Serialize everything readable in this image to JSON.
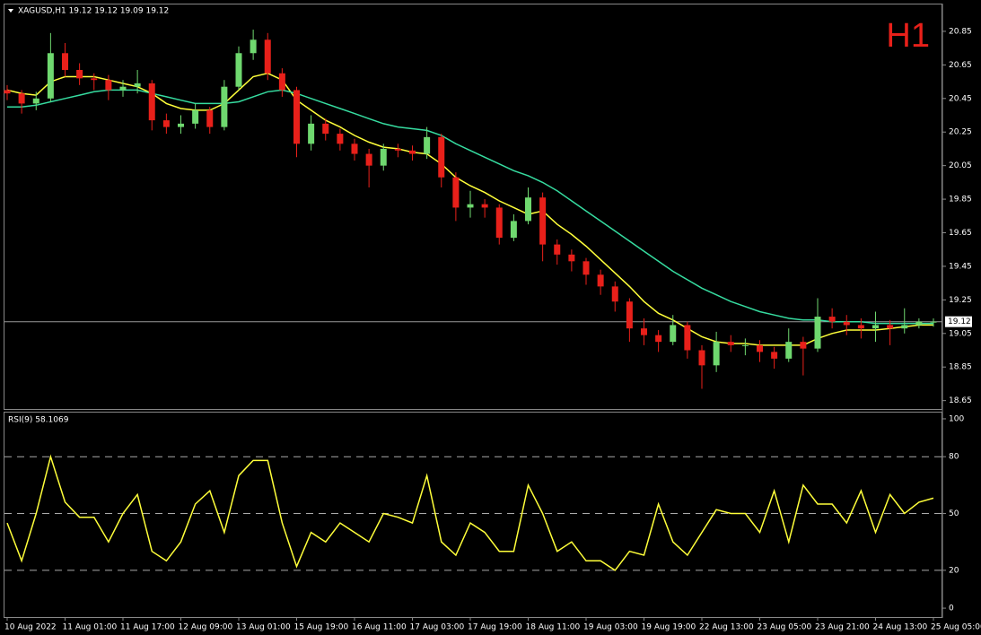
{
  "chart_data": [
    {
      "type": "candlestick",
      "title": "XAGUSD,H1  19.12 19.12 19.09 19.12",
      "annotation": "H1",
      "categories": [
        "10 Aug 2022",
        null,
        null,
        null,
        "11 Aug 01:00",
        null,
        null,
        null,
        "11 Aug 17:00",
        null,
        null,
        null,
        "12 Aug 09:00",
        null,
        null,
        null,
        "13 Aug 01:00",
        null,
        null,
        null,
        "15 Aug 19:00",
        null,
        null,
        null,
        "16 Aug 11:00",
        null,
        null,
        null,
        "17 Aug 03:00",
        null,
        null,
        null,
        "17 Aug 19:00",
        null,
        null,
        null,
        "18 Aug 11:00",
        null,
        null,
        null,
        "19 Aug 03:00",
        null,
        null,
        null,
        "19 Aug 19:00",
        null,
        null,
        null,
        "22 Aug 13:00",
        null,
        null,
        null,
        "23 Aug 05:00",
        null,
        null,
        null,
        "23 Aug 21:00",
        null,
        null,
        null,
        "24 Aug 13:00",
        null,
        null,
        null,
        "25 Aug 05:00"
      ],
      "open": [
        20.5,
        20.48,
        20.42,
        20.45,
        20.72,
        20.62,
        20.57,
        20.56,
        20.5,
        20.52,
        20.54,
        20.32,
        20.28,
        20.3,
        20.38,
        20.28,
        20.52,
        20.72,
        20.8,
        20.6,
        20.5,
        20.18,
        20.3,
        20.24,
        20.18,
        20.12,
        20.05,
        20.15,
        20.14,
        20.12,
        20.22,
        19.98,
        19.8,
        19.82,
        19.8,
        19.62,
        19.72,
        19.86,
        19.58,
        19.52,
        19.48,
        19.4,
        19.33,
        19.24,
        19.08,
        19.04,
        19.0,
        19.1,
        18.95,
        18.86,
        19.0,
        18.98,
        18.98,
        18.94,
        18.9,
        19.0,
        18.96,
        19.15,
        19.12,
        19.1,
        19.08,
        19.1,
        19.08,
        19.1,
        19.12
      ],
      "high": [
        20.53,
        20.5,
        20.49,
        20.84,
        20.78,
        20.66,
        20.6,
        20.59,
        20.56,
        20.62,
        20.56,
        20.36,
        20.35,
        20.42,
        20.4,
        20.56,
        20.76,
        20.86,
        20.84,
        20.63,
        20.52,
        20.35,
        20.33,
        20.27,
        20.21,
        20.15,
        20.18,
        20.18,
        20.17,
        20.28,
        20.24,
        20.01,
        19.9,
        19.85,
        19.82,
        19.76,
        19.92,
        19.89,
        19.61,
        19.55,
        19.5,
        19.43,
        19.36,
        19.26,
        19.14,
        19.07,
        19.16,
        19.12,
        18.98,
        19.06,
        19.04,
        19.02,
        19.01,
        18.97,
        19.08,
        19.03,
        19.26,
        19.2,
        19.16,
        19.14,
        19.18,
        19.13,
        19.2,
        19.14,
        19.14
      ],
      "low": [
        20.44,
        20.36,
        20.38,
        20.43,
        20.58,
        20.53,
        20.5,
        20.44,
        20.46,
        20.48,
        20.26,
        20.24,
        20.24,
        20.27,
        20.24,
        20.26,
        20.5,
        20.68,
        20.56,
        20.46,
        20.1,
        20.14,
        20.2,
        20.14,
        20.08,
        19.92,
        20.02,
        20.1,
        20.08,
        20.09,
        19.92,
        19.72,
        19.74,
        19.74,
        19.58,
        19.6,
        19.7,
        19.48,
        19.46,
        19.42,
        19.34,
        19.28,
        19.18,
        19.0,
        18.98,
        18.94,
        18.98,
        18.9,
        18.72,
        18.82,
        18.94,
        18.92,
        18.88,
        18.84,
        18.88,
        18.8,
        18.94,
        19.08,
        19.04,
        19.02,
        19.0,
        18.98,
        19.05,
        19.08,
        19.09
      ],
      "close": [
        20.48,
        20.42,
        20.45,
        20.72,
        20.62,
        20.57,
        20.56,
        20.5,
        20.52,
        20.54,
        20.32,
        20.28,
        20.3,
        20.38,
        20.28,
        20.52,
        20.72,
        20.8,
        20.6,
        20.5,
        20.18,
        20.3,
        20.24,
        20.18,
        20.12,
        20.05,
        20.15,
        20.14,
        20.12,
        20.22,
        19.98,
        19.8,
        19.82,
        19.8,
        19.62,
        19.72,
        19.86,
        19.58,
        19.52,
        19.48,
        19.4,
        19.33,
        19.24,
        19.08,
        19.04,
        19.0,
        19.1,
        18.95,
        18.86,
        19.0,
        18.98,
        18.98,
        18.94,
        18.9,
        19.0,
        18.96,
        19.15,
        19.12,
        19.1,
        19.08,
        19.1,
        19.08,
        19.1,
        19.12,
        19.12
      ],
      "up_color": "#6fd86f",
      "down_color": "#e8201a",
      "series": [
        {
          "color": "#ffff3a",
          "values": [
            20.5,
            20.48,
            20.47,
            20.55,
            20.58,
            20.58,
            20.58,
            20.56,
            20.54,
            20.52,
            20.48,
            20.42,
            20.39,
            20.38,
            20.38,
            20.42,
            20.5,
            20.58,
            20.6,
            20.56,
            20.44,
            20.38,
            20.32,
            20.28,
            20.23,
            20.19,
            20.16,
            20.15,
            20.13,
            20.12,
            20.06,
            19.98,
            19.93,
            19.89,
            19.84,
            19.8,
            19.76,
            19.78,
            19.7,
            19.64,
            19.57,
            19.49,
            19.41,
            19.33,
            19.24,
            19.17,
            19.13,
            19.08,
            19.03,
            19.0,
            18.99,
            18.99,
            18.98,
            18.98,
            18.98,
            18.98,
            19.02,
            19.05,
            19.07,
            19.07,
            19.07,
            19.08,
            19.09,
            19.1,
            19.1
          ]
        },
        {
          "color": "#36dca0",
          "values": [
            20.4,
            20.4,
            20.41,
            20.43,
            20.45,
            20.47,
            20.49,
            20.5,
            20.5,
            20.5,
            20.48,
            20.46,
            20.44,
            20.42,
            20.42,
            20.42,
            20.43,
            20.46,
            20.49,
            20.5,
            20.48,
            20.45,
            20.42,
            20.39,
            20.36,
            20.33,
            20.3,
            20.28,
            20.27,
            20.26,
            20.23,
            20.18,
            20.14,
            20.1,
            20.06,
            20.02,
            19.99,
            19.95,
            19.9,
            19.84,
            19.78,
            19.72,
            19.66,
            19.6,
            19.54,
            19.48,
            19.42,
            19.37,
            19.32,
            19.28,
            19.24,
            19.21,
            19.18,
            19.16,
            19.14,
            19.13,
            19.13,
            19.12,
            19.12,
            19.12,
            19.11,
            19.11,
            19.11,
            19.11,
            19.11
          ]
        }
      ],
      "last_price": 19.12,
      "ylim": [
        18.6,
        21.01
      ],
      "yticks": [
        20.85,
        20.65,
        20.45,
        20.25,
        20.05,
        19.85,
        19.65,
        19.45,
        19.25,
        19.05,
        18.85,
        18.65
      ]
    },
    {
      "type": "line",
      "title": "RSI(9) 58.1069",
      "series": [
        {
          "color": "#ffff3a",
          "values": [
            45,
            25,
            50,
            80,
            56,
            48,
            48,
            35,
            50,
            60,
            30,
            25,
            35,
            55,
            62,
            40,
            70,
            78,
            78,
            45,
            22,
            40,
            35,
            45,
            40,
            35,
            50,
            48,
            45,
            70,
            35,
            28,
            45,
            40,
            30,
            30,
            65,
            50,
            30,
            35,
            25,
            25,
            20,
            30,
            28,
            55,
            35,
            28,
            40,
            52,
            50,
            50,
            40,
            62,
            35,
            65,
            55,
            55,
            45,
            62,
            40,
            60,
            50,
            56,
            58.1069
          ]
        }
      ],
      "levels": [
        80,
        50,
        20
      ],
      "ylim": [
        -4.7,
        103.3
      ],
      "yticks": [
        100,
        80,
        50,
        20,
        0
      ]
    }
  ]
}
